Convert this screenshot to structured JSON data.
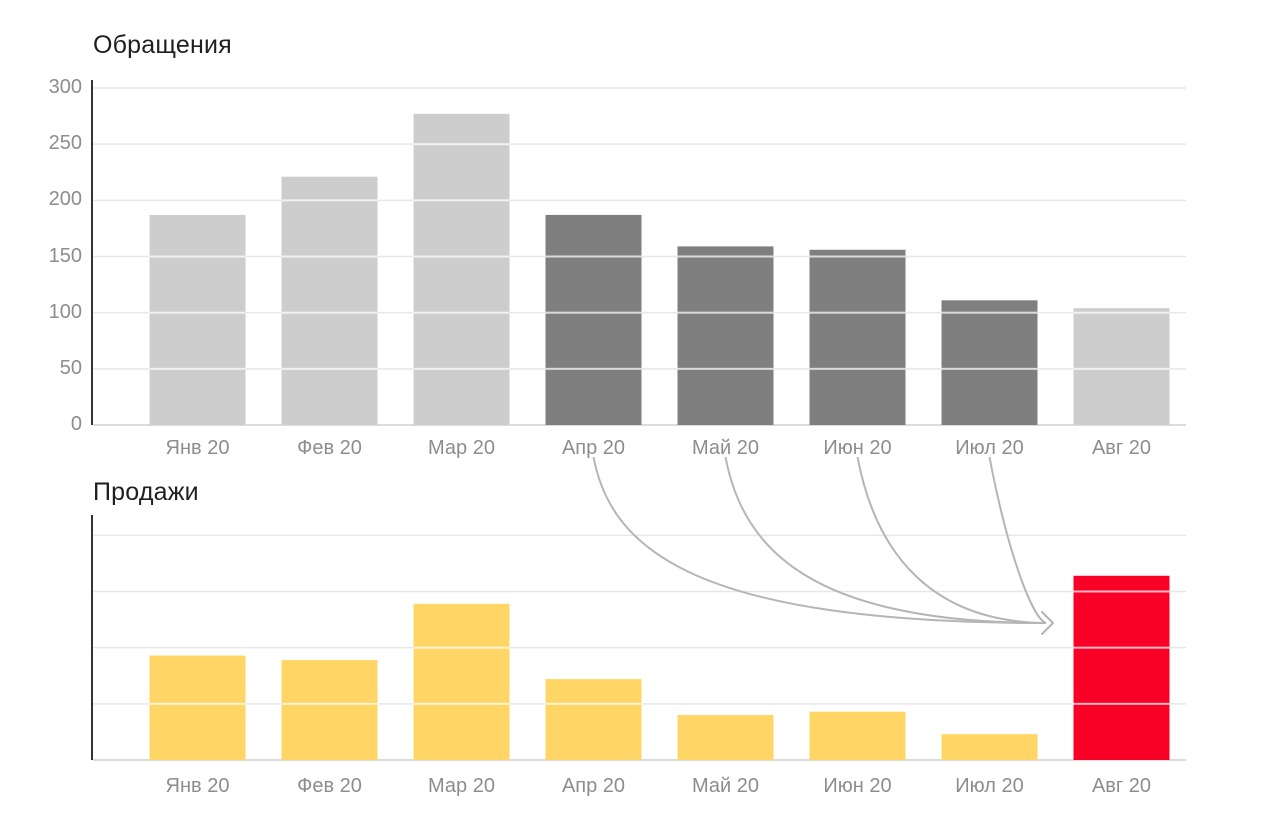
{
  "chart_data": [
    {
      "type": "bar",
      "title": "Обращения",
      "categories": [
        "Янв 20",
        "Фев 20",
        "Мар 20",
        "Апр 20",
        "Май 20",
        "Июн 20",
        "Июл 20",
        "Авг 20"
      ],
      "values": [
        187,
        221,
        277,
        187,
        159,
        156,
        111,
        104
      ],
      "bar_colors": [
        "#cdcdcd",
        "#cdcdcd",
        "#cdcdcd",
        "#7f7f7f",
        "#7f7f7f",
        "#7f7f7f",
        "#7f7f7f",
        "#cdcdcd"
      ],
      "xlabel": "",
      "ylabel": "",
      "ytick_labels": [
        "0",
        "50",
        "100",
        "150",
        "200",
        "250",
        "300"
      ],
      "yticks": [
        0,
        50,
        100,
        150,
        200,
        250,
        300
      ],
      "ylim": [
        0,
        300
      ],
      "grid": true,
      "legend": "none"
    },
    {
      "type": "bar",
      "title": "Продажи",
      "categories": [
        "Янв 20",
        "Фев 20",
        "Мар 20",
        "Апр 20",
        "Май 20",
        "Июн 20",
        "Июл 20",
        "Авг 20"
      ],
      "values": [
        93,
        89,
        139,
        72,
        40,
        43,
        23,
        164
      ],
      "bar_colors": [
        "#ffd666",
        "#ffd666",
        "#ffd666",
        "#ffd666",
        "#ffd666",
        "#ffd666",
        "#ffd666",
        "#f90127"
      ],
      "xlabel": "",
      "ylabel": "",
      "ytick_labels": [],
      "yticks": [
        50,
        100,
        150,
        200
      ],
      "ylim": [
        0,
        218
      ],
      "grid": true,
      "legend": "none"
    }
  ],
  "annotation": {
    "arrow_sources": [
      "Апр 20",
      "Май 20",
      "Июн 20",
      "Июл 20"
    ],
    "arrow_target": "Авг 20",
    "arrow_color": "#b5b5b5"
  },
  "colors": {
    "background": "#ffffff",
    "bar_light_gray": "#cdcdcd",
    "bar_dark_gray": "#7f7f7f",
    "bar_yellow": "#ffd666",
    "bar_red": "#f90127",
    "gridline": "#e7e7e7",
    "baseline": "#dcdcdc",
    "axis_line": "#333333",
    "axis_label": "#8d8d8d",
    "title": "#1f1f1f",
    "grid_overlay_on_bars": "rgba(255,255,255,0.72)"
  }
}
